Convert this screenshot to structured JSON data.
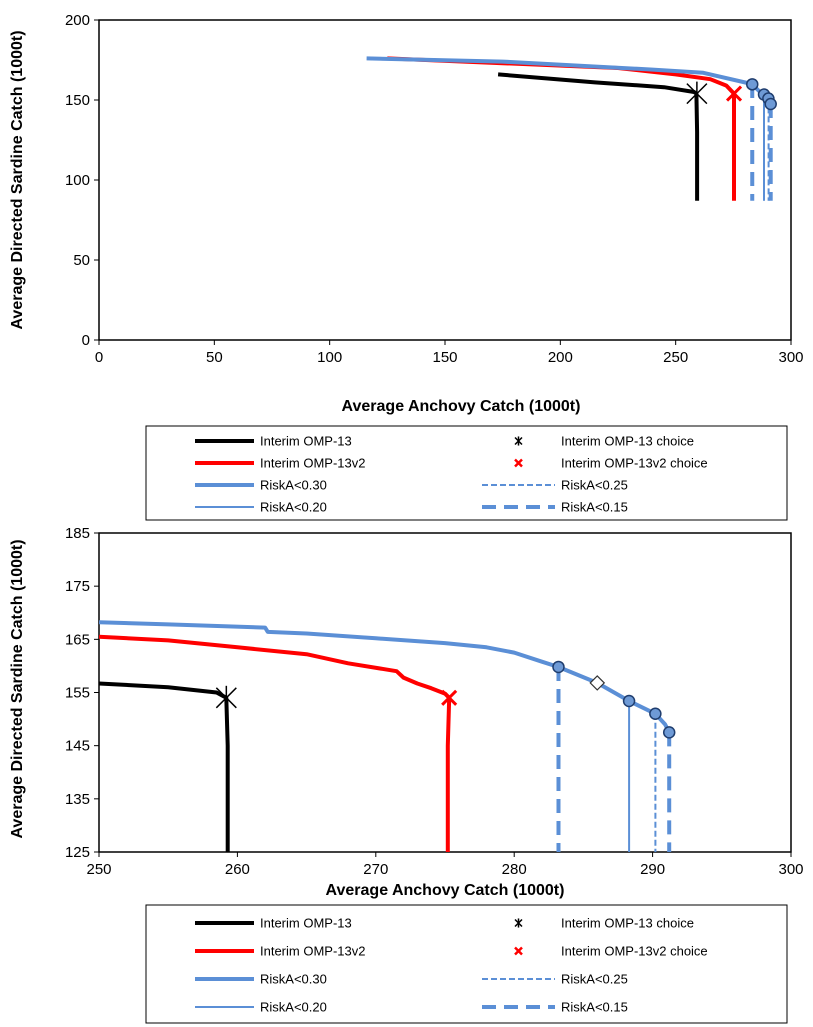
{
  "colors": {
    "omp13": "#000000",
    "omp13v2": "#ff0000",
    "risk": "#5b8fd6",
    "marker_fill": "#6e9ad6",
    "marker_edge": "#1f3d6e"
  },
  "chart_data": [
    {
      "type": "line",
      "xlabel": "Average Anchovy Catch (1000t)",
      "ylabel": "Average Directed Sardine Catch (1000t)",
      "xlim": [
        0,
        300
      ],
      "ylim": [
        0,
        200
      ],
      "xticks": [
        0,
        50,
        100,
        150,
        200,
        250,
        300
      ],
      "yticks": [
        0,
        50,
        100,
        150,
        200
      ],
      "grid": false,
      "legend_position": "below",
      "series": [
        {
          "name": "Interim OMP-13",
          "style": "thick-solid",
          "color": "#000000",
          "points": [
            [
              173,
              166
            ],
            [
              215,
              161
            ],
            [
              245,
              158
            ],
            [
              258,
              155
            ],
            [
              259,
              154
            ],
            [
              259.3,
              130
            ],
            [
              259.3,
              87
            ]
          ]
        },
        {
          "name": "Interim OMP-13v2",
          "style": "thick-solid",
          "color": "#ff0000",
          "points": [
            [
              125,
              176
            ],
            [
              175,
              173
            ],
            [
              225,
              170
            ],
            [
              250,
              166
            ],
            [
              265,
              163
            ],
            [
              272,
              159
            ],
            [
              275.3,
              154
            ],
            [
              275.3,
              120
            ],
            [
              275.3,
              87
            ]
          ]
        },
        {
          "name": "RiskA<0.30",
          "style": "thick-solid",
          "color": "#5b8fd6",
          "points": [
            [
              116,
              176
            ],
            [
              175,
              174
            ],
            [
              240,
              169
            ],
            [
              262,
              167
            ],
            [
              283,
              160
            ],
            [
              288,
              153
            ],
            [
              291,
              148
            ]
          ]
        },
        {
          "name": "RiskA<0.25",
          "style": "thin-dash",
          "color": "#5b8fd6",
          "points": [
            [
              290.3,
              151
            ],
            [
              290.3,
              87
            ]
          ]
        },
        {
          "name": "RiskA<0.20",
          "style": "thin-solid",
          "color": "#5b8fd6",
          "points": [
            [
              288.3,
              153.5
            ],
            [
              288.3,
              87
            ]
          ]
        },
        {
          "name": "RiskA<0.15",
          "style": "thick-dash",
          "color": "#5b8fd6",
          "points": [
            [
              283.2,
              160
            ],
            [
              283.2,
              87
            ],
            [
              291.2,
              147.5
            ],
            [
              291.2,
              87
            ]
          ]
        }
      ],
      "markers": [
        {
          "name": "Interim OMP-13 choice",
          "shape": "asterisk",
          "color": "#000000",
          "x": 259.2,
          "y": 154
        },
        {
          "name": "Interim OMP-13v2 choice",
          "shape": "x",
          "color": "#ff0000",
          "x": 275.3,
          "y": 154
        },
        {
          "shape": "circle",
          "x": 283.2,
          "y": 159.8
        },
        {
          "shape": "circle",
          "x": 288.3,
          "y": 153.4
        },
        {
          "shape": "circle",
          "x": 290.2,
          "y": 150.9
        },
        {
          "shape": "circle",
          "x": 291.2,
          "y": 147.5
        }
      ]
    },
    {
      "type": "line",
      "xlabel": "Average Anchovy Catch (1000t)",
      "ylabel": "Average Directed Sardine Catch (1000t)",
      "xlim": [
        250,
        300
      ],
      "ylim": [
        125,
        185
      ],
      "xticks": [
        250,
        260,
        270,
        280,
        290,
        300
      ],
      "yticks": [
        125,
        135,
        145,
        155,
        165,
        175,
        185
      ],
      "grid": false,
      "legend_position": "below",
      "series": [
        {
          "name": "Interim OMP-13",
          "style": "thick-solid",
          "color": "#000000",
          "points": [
            [
              250,
              156.7
            ],
            [
              255,
              156
            ],
            [
              258.5,
              155
            ],
            [
              259.2,
              154
            ],
            [
              259.3,
              145
            ],
            [
              259.3,
              125
            ]
          ]
        },
        {
          "name": "Interim OMP-13v2",
          "style": "thick-solid",
          "color": "#ff0000",
          "points": [
            [
              250,
              165.5
            ],
            [
              255,
              164.8
            ],
            [
              260,
              163.5
            ],
            [
              265,
              162.2
            ],
            [
              268,
              160.5
            ],
            [
              271.5,
              159
            ],
            [
              272,
              157.8
            ],
            [
              273,
              156.7
            ],
            [
              274,
              155.8
            ],
            [
              275,
              154.8
            ],
            [
              275.3,
              154
            ],
            [
              275.2,
              145
            ],
            [
              275.2,
              125
            ]
          ]
        },
        {
          "name": "RiskA<0.30",
          "style": "thick-solid",
          "color": "#5b8fd6",
          "points": [
            [
              250,
              168.2
            ],
            [
              255,
              167.8
            ],
            [
              262,
              167.2
            ],
            [
              262.2,
              166.4
            ],
            [
              265,
              166.1
            ],
            [
              270,
              165.2
            ],
            [
              275,
              164.3
            ],
            [
              278,
              163.5
            ],
            [
              280,
              162.5
            ],
            [
              282,
              160.8
            ],
            [
              283.2,
              159.8
            ],
            [
              286,
              156.8
            ],
            [
              288.3,
              153.4
            ],
            [
              290.2,
              151
            ],
            [
              290.9,
              149
            ],
            [
              291.2,
              147.5
            ]
          ]
        },
        {
          "name": "RiskA<0.25",
          "style": "thin-dash",
          "color": "#5b8fd6",
          "points": [
            [
              290.2,
              151
            ],
            [
              290.2,
              125
            ]
          ]
        },
        {
          "name": "RiskA<0.20",
          "style": "thin-solid",
          "color": "#5b8fd6",
          "points": [
            [
              288.3,
              153.4
            ],
            [
              288.3,
              125
            ]
          ]
        },
        {
          "name": "RiskA<0.15",
          "style": "thick-dash",
          "color": "#5b8fd6",
          "points": [
            [
              283.2,
              159.8
            ],
            [
              283.2,
              125
            ],
            [
              291.2,
              147.5
            ],
            [
              291.2,
              125
            ]
          ]
        }
      ],
      "markers": [
        {
          "name": "Interim OMP-13 choice",
          "shape": "asterisk",
          "color": "#000000",
          "x": 259.2,
          "y": 154
        },
        {
          "name": "Interim OMP-13v2 choice",
          "shape": "x",
          "color": "#ff0000",
          "x": 275.3,
          "y": 154
        },
        {
          "shape": "circle",
          "x": 283.2,
          "y": 159.8
        },
        {
          "shape": "diamond",
          "x": 286,
          "y": 156.8
        },
        {
          "shape": "circle",
          "x": 288.3,
          "y": 153.4
        },
        {
          "shape": "circle",
          "x": 290.2,
          "y": 151
        },
        {
          "shape": "circle",
          "x": 291.2,
          "y": 147.5
        }
      ]
    }
  ],
  "legend": {
    "entries": [
      {
        "label": "Interim OMP-13",
        "style": "thick-solid",
        "color": "#000000"
      },
      {
        "label": "Interim OMP-13 choice",
        "style": "asterisk",
        "color": "#000000"
      },
      {
        "label": "Interim OMP-13v2",
        "style": "thick-solid",
        "color": "#ff0000"
      },
      {
        "label": "Interim OMP-13v2 choice",
        "style": "x",
        "color": "#ff0000"
      },
      {
        "label": "RiskA<0.30",
        "style": "thick-solid",
        "color": "#5b8fd6"
      },
      {
        "label": "RiskA<0.25",
        "style": "thin-dash",
        "color": "#5b8fd6"
      },
      {
        "label": "RiskA<0.20",
        "style": "thin-solid",
        "color": "#5b8fd6"
      },
      {
        "label": "RiskA<0.15",
        "style": "thick-dash",
        "color": "#5b8fd6"
      }
    ]
  }
}
